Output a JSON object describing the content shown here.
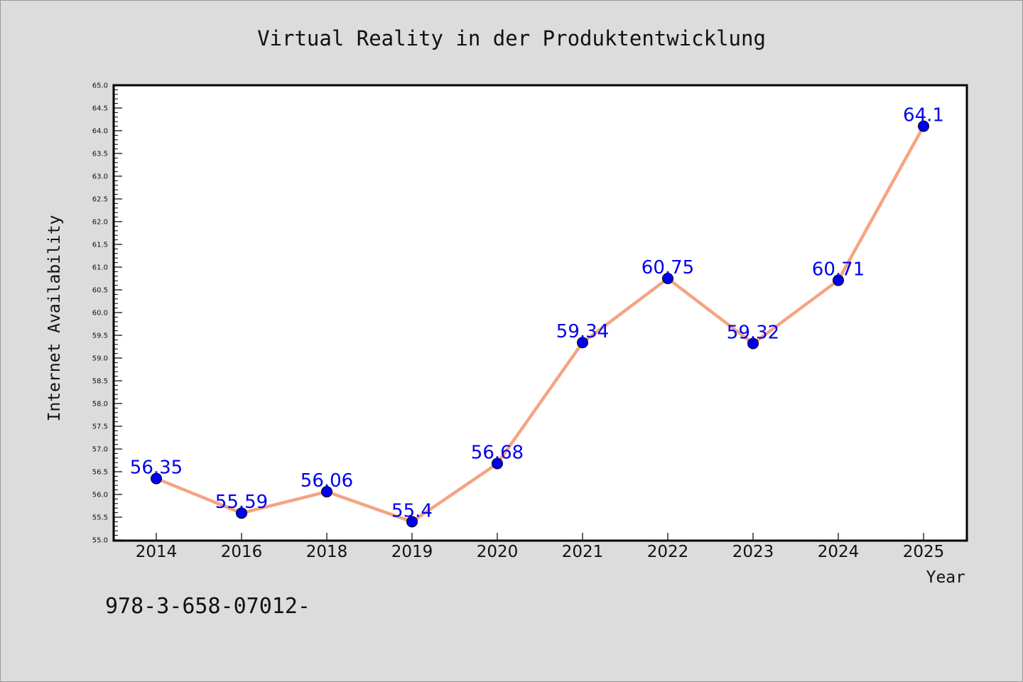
{
  "chart_data": {
    "type": "line",
    "title": "Virtual Reality in der Produktentwicklung",
    "xlabel": "Year",
    "ylabel": "Internet Availability",
    "categories": [
      "2014",
      "2016",
      "2018",
      "2019",
      "2020",
      "2021",
      "2022",
      "2023",
      "2024",
      "2025"
    ],
    "series": [
      {
        "values": [
          56.35,
          55.59,
          56.06,
          55.4,
          56.68,
          59.34,
          60.75,
          59.32,
          60.71,
          64.1
        ],
        "labels": [
          "56.35",
          "55.59",
          "56.06",
          "55.4",
          "56.68",
          "59.34",
          "60.75",
          "59.32",
          "60.71",
          "64.1"
        ],
        "line_color": "#f4a582",
        "marker_color": "#0000ee",
        "label_color": "#0000ee"
      }
    ],
    "ylim": [
      55.0,
      65.0
    ],
    "yticks": [
      "55.0",
      "55.5",
      "56.0",
      "56.5",
      "57.0",
      "57.5",
      "58.0",
      "58.5",
      "59.0",
      "59.5",
      "60.0",
      "60.5",
      "61.0",
      "61.5",
      "62.0",
      "62.5",
      "63.0",
      "63.5",
      "64.0",
      "64.5",
      "65.0"
    ],
    "grid": false,
    "legend": "none"
  },
  "footer_text": "978-3-658-07012-",
  "colors": {
    "background": "#dcdcdc",
    "plot_background": "#ffffff",
    "axis": "#000000"
  }
}
